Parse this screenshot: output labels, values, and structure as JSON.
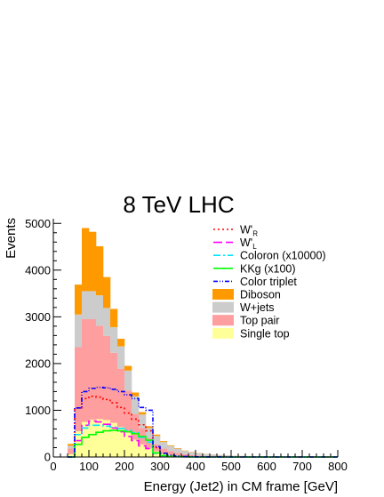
{
  "chart_data": {
    "type": "bar",
    "title": "8 TeV LHC",
    "xlabel": "Energy (Jet2) in CM frame [GeV]",
    "ylabel": "Events",
    "xlim": [
      0,
      800
    ],
    "ylim": [
      0,
      5100
    ],
    "bin_width": 20,
    "x_ticks": [
      0,
      100,
      200,
      300,
      400,
      500,
      600,
      700,
      800
    ],
    "y_ticks": [
      0,
      1000,
      2000,
      3000,
      4000,
      5000
    ],
    "bin_edges_start": 40,
    "stack": [
      {
        "name": "Single top",
        "color": "#ffff99",
        "values": [
          60,
          550,
          750,
          800,
          810,
          790,
          730,
          640,
          520,
          370,
          270,
          180,
          120,
          80,
          55,
          40,
          25,
          18,
          12,
          8,
          6,
          4,
          3,
          2,
          2,
          1,
          1,
          1,
          0,
          0,
          0,
          0,
          0,
          0,
          0,
          0,
          0,
          0
        ]
      },
      {
        "name": "Top pair",
        "color": "#ff9e9e",
        "values": [
          120,
          1800,
          2200,
          2150,
          2000,
          1800,
          1500,
          1250,
          900,
          550,
          350,
          220,
          150,
          100,
          70,
          50,
          35,
          25,
          18,
          13,
          10,
          8,
          6,
          5,
          4,
          3,
          2,
          2,
          1,
          1,
          1,
          0,
          0,
          0,
          0,
          0,
          0,
          0
        ]
      },
      {
        "name": "W+jets",
        "color": "#cccccc",
        "values": [
          60,
          700,
          600,
          600,
          650,
          600,
          550,
          480,
          430,
          380,
          290,
          220,
          180,
          140,
          110,
          90,
          70,
          60,
          50,
          40,
          35,
          30,
          25,
          20,
          17,
          15,
          12,
          10,
          8,
          7,
          6,
          5,
          4,
          3,
          3,
          2,
          2,
          1
        ]
      },
      {
        "name": "Diboson",
        "color": "#ff9900",
        "values": [
          40,
          640,
          1350,
          1270,
          1050,
          660,
          390,
          160,
          100,
          80,
          50,
          40,
          30,
          20,
          15,
          10,
          8,
          6,
          5,
          4,
          3,
          2,
          2,
          1,
          1,
          1,
          0,
          0,
          0,
          0,
          0,
          0,
          0,
          0,
          0,
          0,
          0,
          0
        ]
      }
    ],
    "lines": [
      {
        "name": "W'_R",
        "label_main": "W'",
        "label_sub": "R",
        "color": "#ff0000",
        "dash": "2,3",
        "values": [
          0,
          1050,
          1250,
          1300,
          1280,
          1230,
          1160,
          1060,
          940,
          810,
          690,
          560,
          200,
          80,
          40,
          20,
          10,
          6,
          4,
          2,
          1,
          1,
          0,
          0,
          0,
          0,
          0,
          0,
          0,
          0,
          0,
          0,
          0,
          0,
          0,
          0,
          0,
          0
        ]
      },
      {
        "name": "W'_L",
        "label_main": "W'",
        "label_sub": "L",
        "color": "#ff00ff",
        "dash": "10,4",
        "values": [
          0,
          350,
          680,
          770,
          750,
          700,
          620,
          540,
          440,
          350,
          240,
          180,
          80,
          30,
          15,
          8,
          4,
          2,
          1,
          0,
          0,
          0,
          0,
          0,
          0,
          0,
          0,
          0,
          0,
          0,
          0,
          0,
          0,
          0,
          0,
          0,
          0,
          0
        ]
      },
      {
        "name": "Coloron (x10000)",
        "label_main": "Coloron (x10000)",
        "label_sub": "",
        "color": "#00e5ff",
        "dash": "8,3,2,3",
        "values": [
          0,
          480,
          620,
          680,
          680,
          660,
          640,
          610,
          570,
          520,
          420,
          320,
          80,
          30,
          15,
          8,
          4,
          2,
          1,
          0,
          0,
          0,
          0,
          0,
          0,
          0,
          0,
          0,
          0,
          0,
          0,
          0,
          0,
          0,
          0,
          0,
          0,
          0
        ]
      },
      {
        "name": "KKg (x100)",
        "label_main": "KKg (x100)",
        "label_sub": "",
        "color": "#00ff00",
        "dash": "",
        "values": [
          0,
          270,
          420,
          480,
          530,
          560,
          570,
          560,
          540,
          500,
          440,
          360,
          90,
          30,
          15,
          8,
          4,
          2,
          1,
          0,
          0,
          0,
          0,
          0,
          0,
          0,
          0,
          0,
          0,
          0,
          0,
          0,
          0,
          0,
          0,
          0,
          0,
          0
        ]
      },
      {
        "name": "Color triplet",
        "label_main": "Color triplet",
        "label_sub": "",
        "color": "#0000ff",
        "dash": "5,2,1,2,1,2",
        "values": [
          0,
          1050,
          1400,
          1470,
          1490,
          1480,
          1450,
          1400,
          1330,
          1250,
          1060,
          1000,
          220,
          80,
          40,
          20,
          10,
          6,
          4,
          2,
          1,
          1,
          0,
          0,
          0,
          0,
          0,
          0,
          0,
          0,
          0,
          0,
          0,
          0,
          0,
          0,
          0,
          0
        ]
      }
    ],
    "legend": {
      "placement": "top-right",
      "order": [
        "W'_R",
        "W'_L",
        "Coloron (x10000)",
        "KKg (x100)",
        "Color triplet",
        "Diboson",
        "W+jets",
        "Top pair",
        "Single top"
      ]
    }
  }
}
